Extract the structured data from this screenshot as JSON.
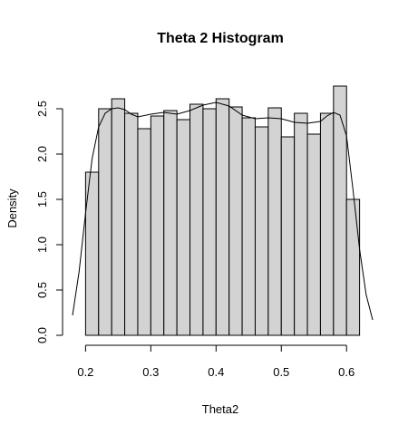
{
  "chart_data": {
    "type": "bar",
    "title": "Theta 2 Histogram",
    "xlabel": "Theta2",
    "ylabel": "Density",
    "bin_width": 0.02,
    "bin_starts": [
      0.2,
      0.22,
      0.24,
      0.26,
      0.28,
      0.3,
      0.32,
      0.34,
      0.36,
      0.38,
      0.4,
      0.42,
      0.44,
      0.46,
      0.48,
      0.5,
      0.52,
      0.54,
      0.56,
      0.58,
      0.6
    ],
    "values": [
      1.8,
      2.5,
      2.61,
      2.45,
      2.28,
      2.42,
      2.48,
      2.38,
      2.55,
      2.5,
      2.61,
      2.52,
      2.4,
      2.3,
      2.51,
      2.19,
      2.45,
      2.22,
      2.45,
      2.75,
      1.5
    ],
    "xlim": [
      0.18,
      0.64
    ],
    "ylim": [
      0,
      2.75
    ],
    "x_ticks": [
      0.2,
      0.3,
      0.4,
      0.5,
      0.6
    ],
    "x_tick_labels": [
      "0.2",
      "0.3",
      "0.4",
      "0.5",
      "0.6"
    ],
    "y_ticks": [
      0,
      0.5,
      1,
      1.5,
      2,
      2.5
    ],
    "y_tick_labels": [
      "0.0",
      "0.5",
      "1.0",
      "1.5",
      "2.0",
      "2.5"
    ],
    "density_curve": {
      "x": [
        0.18,
        0.19,
        0.2,
        0.21,
        0.22,
        0.23,
        0.24,
        0.25,
        0.26,
        0.27,
        0.28,
        0.3,
        0.32,
        0.34,
        0.36,
        0.38,
        0.4,
        0.42,
        0.44,
        0.46,
        0.48,
        0.5,
        0.52,
        0.54,
        0.56,
        0.57,
        0.58,
        0.59,
        0.6,
        0.61,
        0.62,
        0.63,
        0.64
      ],
      "y": [
        0.22,
        0.7,
        1.35,
        1.95,
        2.3,
        2.45,
        2.5,
        2.51,
        2.49,
        2.44,
        2.41,
        2.44,
        2.46,
        2.44,
        2.48,
        2.54,
        2.57,
        2.53,
        2.43,
        2.39,
        2.4,
        2.39,
        2.35,
        2.34,
        2.36,
        2.42,
        2.46,
        2.43,
        2.2,
        1.6,
        0.95,
        0.45,
        0.17
      ]
    }
  }
}
